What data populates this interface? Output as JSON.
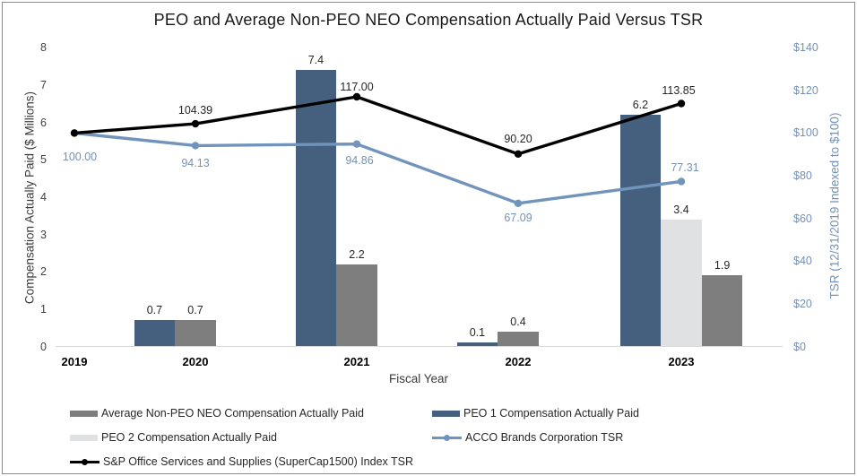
{
  "chart_data": {
    "type": "combo-bar-line",
    "title": "PEO and Average Non-PEO NEO Compensation Actually Paid Versus TSR",
    "xlabel": "Fiscal Year",
    "ylabel_left": "Compensation Actually Paid ($ Millions)",
    "ylabel_right": "TSR (12/31/2019 Indexed to $100)",
    "categories": [
      "2019",
      "2020",
      "2021",
      "2022",
      "2023"
    ],
    "left_axis": {
      "min": 0,
      "max": 8,
      "ticks": [
        "0",
        "1",
        "2",
        "3",
        "4",
        "5",
        "6",
        "7",
        "8"
      ]
    },
    "right_axis": {
      "min": 0,
      "max": 140,
      "step": 20,
      "ticks": [
        "$0",
        "$20",
        "$40",
        "$60",
        "$80",
        "$100",
        "$120",
        "$140"
      ]
    },
    "grid": "off",
    "bar_series": [
      {
        "name": "PEO 1 Compensation Actually Paid",
        "color": "#44607E",
        "values": [
          null,
          0.7,
          7.4,
          0.1,
          6.2
        ],
        "labels": [
          null,
          "0.7",
          "7.4",
          "0.1",
          "6.2"
        ]
      },
      {
        "name": "PEO 2 Compensation Actually Paid",
        "color": "#DFE1E3",
        "values": [
          null,
          null,
          null,
          null,
          3.4
        ],
        "labels": [
          null,
          null,
          null,
          null,
          "3.4"
        ]
      },
      {
        "name": "Average Non-PEO NEO Compensation Actually Paid",
        "color": "#7E7E7E",
        "values": [
          null,
          0.7,
          2.2,
          0.4,
          1.9
        ],
        "labels": [
          null,
          "0.7",
          "2.2",
          "0.4",
          "1.9"
        ]
      }
    ],
    "line_series": [
      {
        "name": "ACCO Brands Corporation TSR",
        "color": "#7094BB",
        "label_color": "#7591B4",
        "marker": "circle",
        "values": [
          100.0,
          94.13,
          94.86,
          67.09,
          77.31
        ],
        "labels": [
          "100.00",
          "94.13",
          "94.86",
          "67.09",
          "77.31"
        ],
        "label_dy": [
          27,
          20,
          18,
          16,
          -15
        ],
        "label_dx": [
          6,
          0,
          3,
          0,
          4
        ]
      },
      {
        "name": "S&P Office Services and Supplies (SuperCap1500) Index TSR",
        "color": "#000000",
        "label_color": "#262626",
        "marker": "circle",
        "values": [
          100.0,
          104.39,
          117.0,
          90.2,
          113.85
        ],
        "labels": [
          null,
          "104.39",
          "117.00",
          "90.20",
          "113.85"
        ],
        "label_dy": [
          0,
          -15,
          -11,
          -17,
          -14
        ],
        "label_dx": [
          0,
          0,
          0,
          0,
          -3
        ]
      }
    ],
    "legend": {
      "position": "bottom",
      "items": [
        {
          "label": "Average Non-PEO NEO Compensation Actually Paid",
          "swatch": "bar",
          "color": "#7E7E7E"
        },
        {
          "label": "PEO 1 Compensation Actually Paid",
          "swatch": "bar",
          "color": "#44607E"
        },
        {
          "label": "PEO 2 Compensation Actually Paid",
          "swatch": "bar",
          "color": "#DFE1E3"
        },
        {
          "label": "ACCO Brands Corporation TSR",
          "swatch": "line",
          "color": "#7094BB"
        },
        {
          "label": "S&P Office Services and Supplies (SuperCap1500) Index TSR",
          "swatch": "line",
          "color": "#000000"
        }
      ]
    }
  }
}
